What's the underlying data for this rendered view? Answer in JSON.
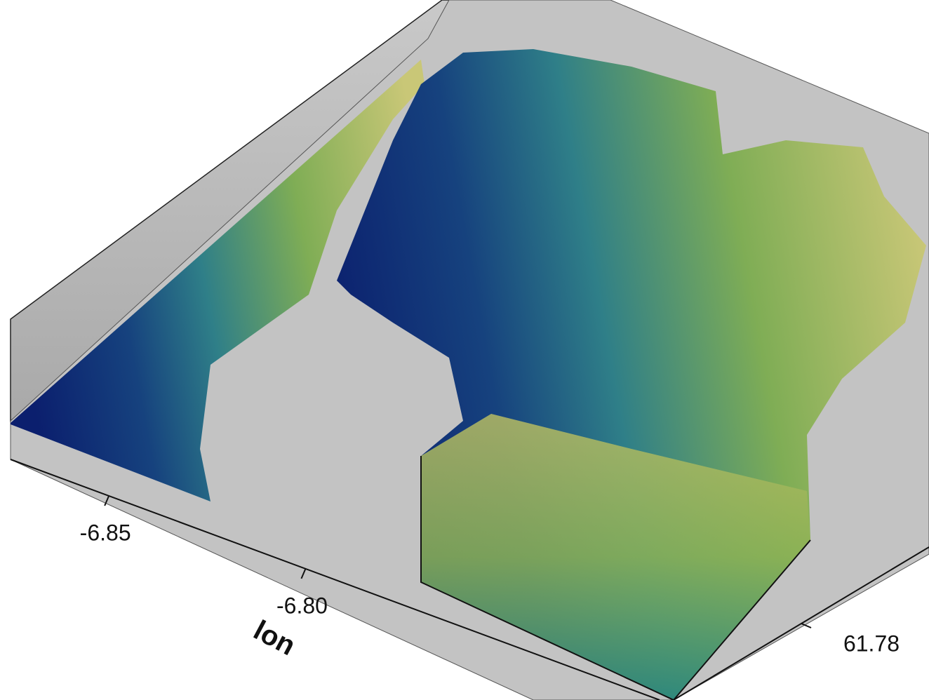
{
  "chart_data": {
    "type": "surface3d",
    "xlabel": "lon",
    "xlim": [
      -6.875,
      -6.71
    ],
    "xticks": [
      -6.85,
      {
        "value": -6.8,
        "label": "-6.80"
      }
    ],
    "ylim": [
      61.77,
      61.79
    ],
    "yticks": [
      61.78
    ]
  }
}
